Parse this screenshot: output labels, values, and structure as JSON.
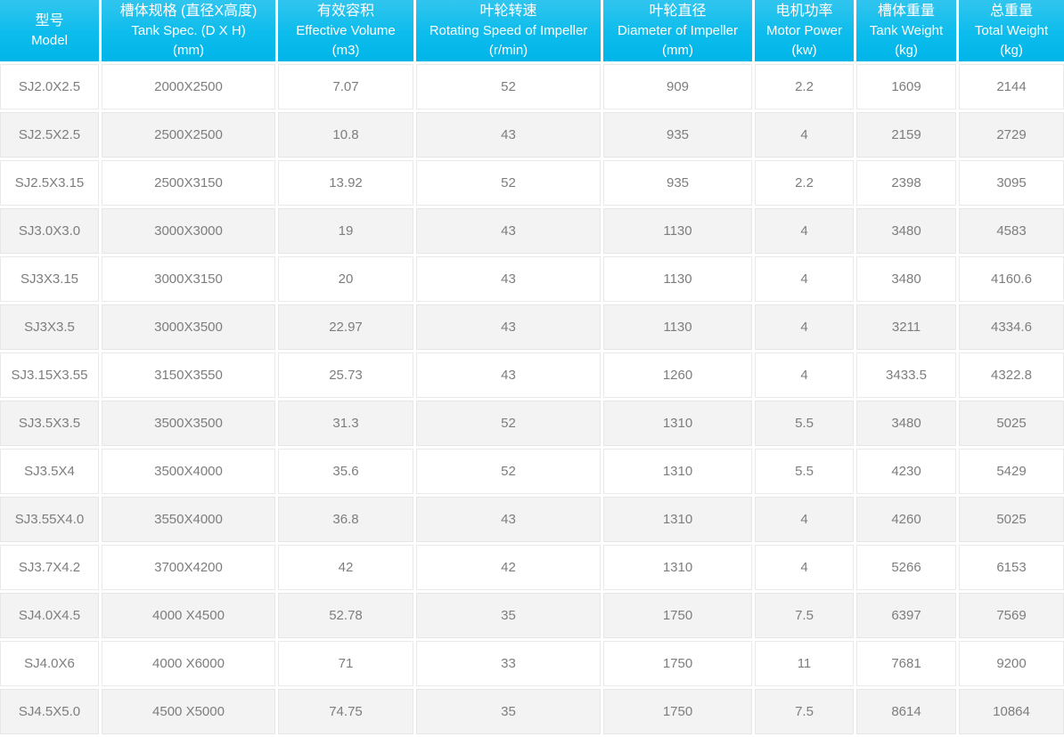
{
  "colors": {
    "header_gradient_top": "#31c5ee",
    "header_gradient_bottom": "#00b5e9",
    "header_text": "#ffffff",
    "body_text": "#7d7d7d",
    "cell_border": "#e9e9e9",
    "row_alt_background": "#f3f3f3",
    "row_background": "#ffffff"
  },
  "chart_data": {
    "type": "table",
    "columns": [
      {
        "id": "model",
        "zh": "型号",
        "en": "Model",
        "unit": ""
      },
      {
        "id": "tank-spec",
        "zh": "槽体规格 (直径X高度)",
        "en": "Tank Spec. (D X H)",
        "unit": "(mm)"
      },
      {
        "id": "effective-volume",
        "zh": "有效容积",
        "en": "Effective Volume",
        "unit": "(m3)"
      },
      {
        "id": "rotating-speed",
        "zh": "叶轮转速",
        "en": "Rotating Speed of Impeller",
        "unit": "(r/min)"
      },
      {
        "id": "impeller-diameter",
        "zh": "叶轮直径",
        "en": "Diameter of Impeller",
        "unit": "(mm)"
      },
      {
        "id": "motor-power",
        "zh": "电机功率",
        "en": "Motor Power",
        "unit": "(kw)"
      },
      {
        "id": "tank-weight",
        "zh": "槽体重量",
        "en": "Tank Weight",
        "unit": "(kg)"
      },
      {
        "id": "total-weight",
        "zh": "总重量",
        "en": "Total Weight",
        "unit": "(kg)"
      }
    ],
    "rows": [
      [
        "SJ2.0X2.5",
        "2000X2500",
        "7.07",
        "52",
        "909",
        "2.2",
        "1609",
        "2144"
      ],
      [
        "SJ2.5X2.5",
        "2500X2500",
        "10.8",
        "43",
        "935",
        "4",
        "2159",
        "2729"
      ],
      [
        "SJ2.5X3.15",
        "2500X3150",
        "13.92",
        "52",
        "935",
        "2.2",
        "2398",
        "3095"
      ],
      [
        "SJ3.0X3.0",
        "3000X3000",
        "19",
        "43",
        "1130",
        "4",
        "3480",
        "4583"
      ],
      [
        "SJ3X3.15",
        "3000X3150",
        "20",
        "43",
        "1130",
        "4",
        "3480",
        "4160.6"
      ],
      [
        "SJ3X3.5",
        "3000X3500",
        "22.97",
        "43",
        "1130",
        "4",
        "3211",
        "4334.6"
      ],
      [
        "SJ3.15X3.55",
        "3150X3550",
        "25.73",
        "43",
        "1260",
        "4",
        "3433.5",
        "4322.8"
      ],
      [
        "SJ3.5X3.5",
        "3500X3500",
        "31.3",
        "52",
        "1310",
        "5.5",
        "3480",
        "5025"
      ],
      [
        "SJ3.5X4",
        "3500X4000",
        "35.6",
        "52",
        "1310",
        "5.5",
        "4230",
        "5429"
      ],
      [
        "SJ3.55X4.0",
        "3550X4000",
        "36.8",
        "43",
        "1310",
        "4",
        "4260",
        "5025"
      ],
      [
        "SJ3.7X4.2",
        "3700X4200",
        "42",
        "42",
        "1310",
        "4",
        "5266",
        "6153"
      ],
      [
        "SJ4.0X4.5",
        "4000 X4500",
        "52.78",
        "35",
        "1750",
        "7.5",
        "6397",
        "7569"
      ],
      [
        "SJ4.0X6",
        "4000 X6000",
        "71",
        "33",
        "1750",
        "11",
        "7681",
        "9200"
      ],
      [
        "SJ4.5X5.0",
        "4500 X5000",
        "74.75",
        "35",
        "1750",
        "7.5",
        "8614",
        "10864"
      ]
    ]
  }
}
